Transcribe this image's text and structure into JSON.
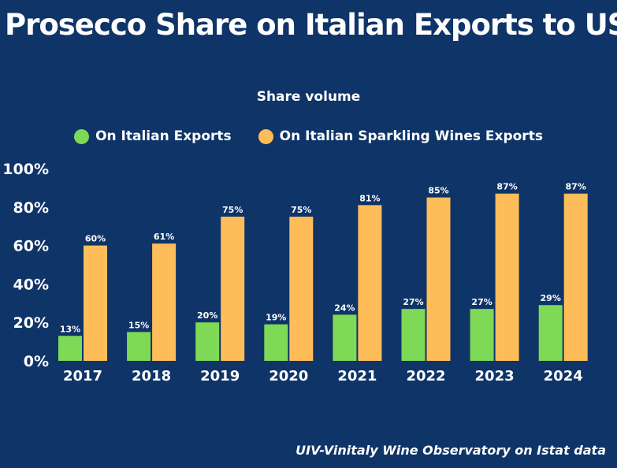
{
  "title": "Prosecco Share on Italian Exports to US",
  "source": "UIV-Vinitaly Wine Observatory on Istat data",
  "colors": {
    "background": "#0f3468",
    "text": "#ffffff",
    "series_1": "#7ed957",
    "series_2": "#ffbd59"
  },
  "chart_data": {
    "type": "bar",
    "title": "Share volume",
    "xlabel": "",
    "ylabel": "",
    "categories": [
      "2017",
      "2018",
      "2019",
      "2020",
      "2021",
      "2022",
      "2023",
      "2024"
    ],
    "series": [
      {
        "name": "On Italian Exports",
        "color": "#7ed957",
        "values": [
          13,
          15,
          20,
          19,
          24,
          27,
          27,
          29
        ],
        "labels": [
          "13%",
          "15%",
          "20%",
          "19%",
          "24%",
          "27%",
          "27%",
          "29%"
        ]
      },
      {
        "name": "On Italian Sparkling Wines Exports",
        "color": "#ffbd59",
        "values": [
          60,
          61,
          75,
          75,
          81,
          85,
          87,
          87
        ],
        "labels": [
          "60%",
          "61%",
          "75%",
          "75%",
          "81%",
          "85%",
          "87%",
          "87%"
        ]
      }
    ],
    "yticks": [
      "0%",
      "20%",
      "40%",
      "60%",
      "80%",
      "100%"
    ],
    "ytick_values": [
      0,
      20,
      40,
      60,
      80,
      100
    ],
    "ylim": [
      0,
      100
    ],
    "grid": false,
    "legend_position": "top"
  }
}
